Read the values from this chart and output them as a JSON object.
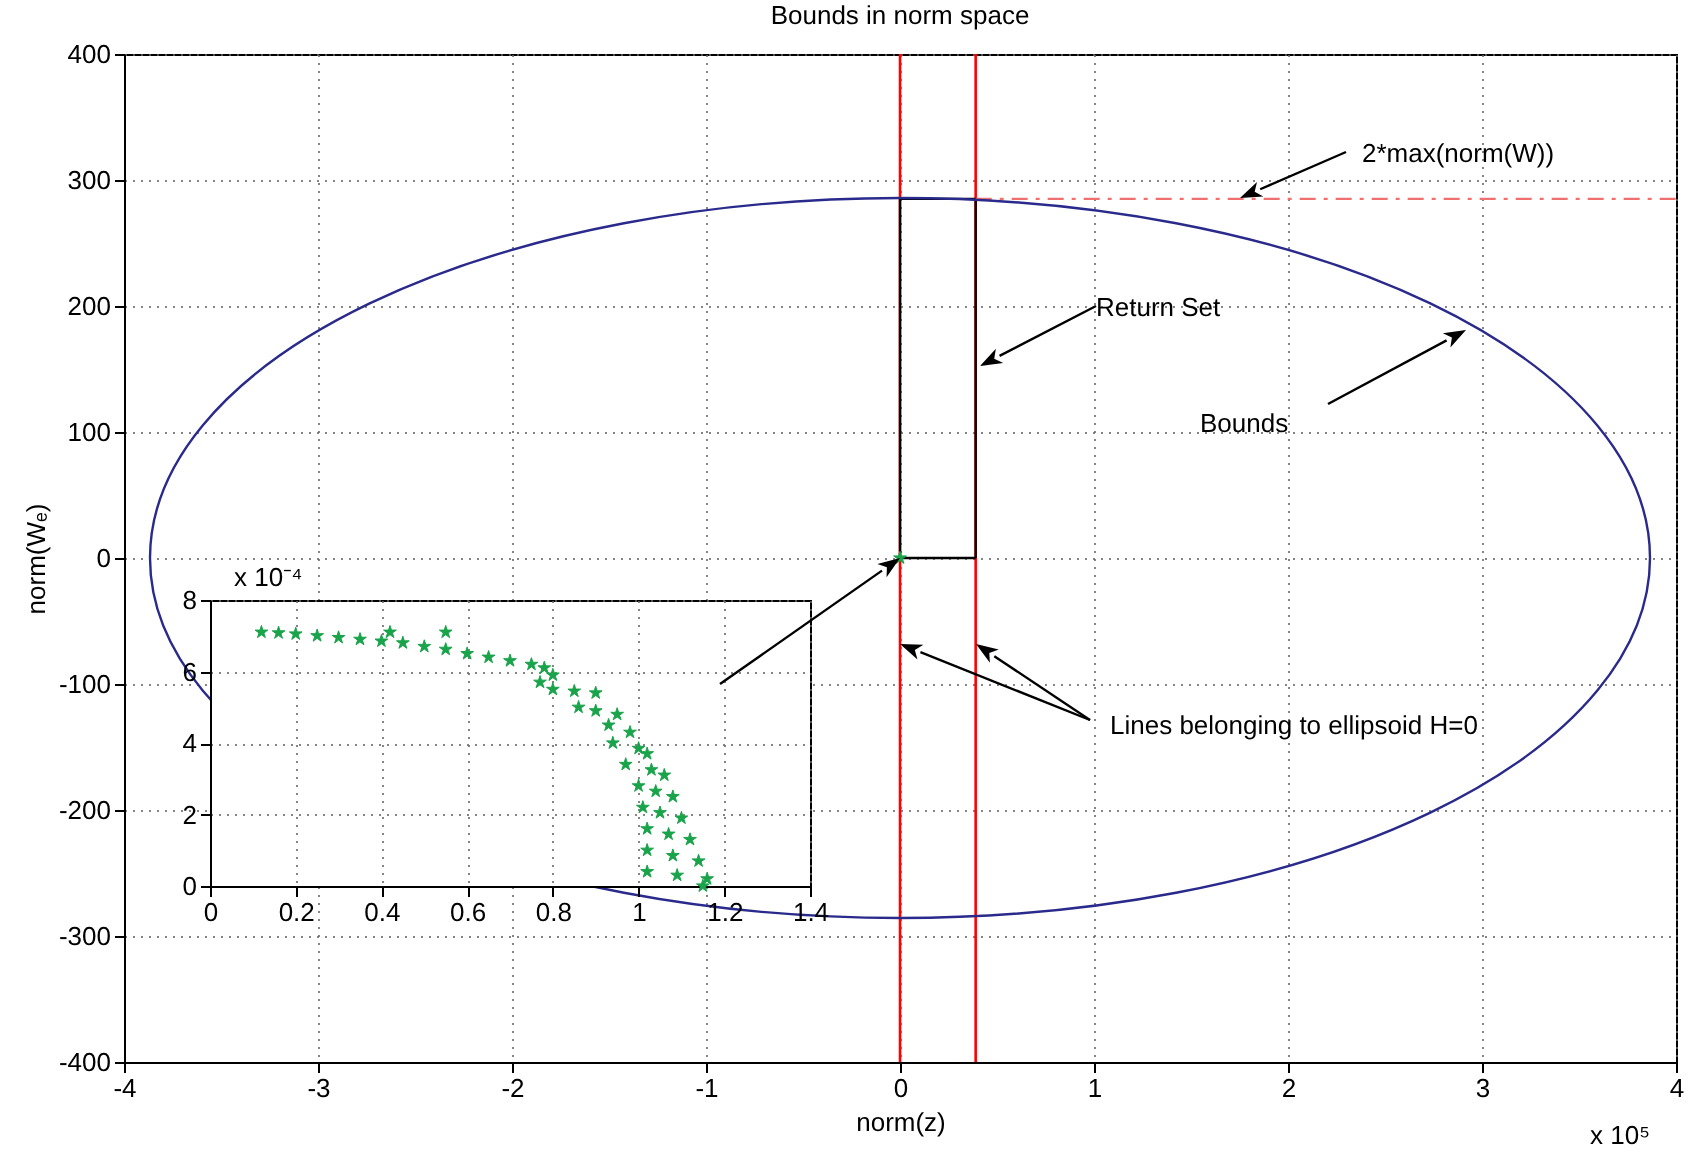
{
  "chart_data": [
    {
      "type": "line",
      "title": "Bounds in norm space",
      "xlabel": "norm(z)",
      "ylabel": "norm(Wₑ)",
      "xlim": [
        -4,
        4
      ],
      "xticks": [
        -4,
        -3,
        -2,
        -1,
        0,
        1,
        2,
        3,
        4
      ],
      "ylim": [
        -400,
        400
      ],
      "yticks": [
        -400,
        -300,
        -200,
        -100,
        0,
        100,
        200,
        300,
        400
      ],
      "grid": true,
      "annotations": [
        "x 10⁵",
        "2*max(norm(W))",
        "Return Set",
        "Bounds",
        "Lines belonging to ellipsoid H=0"
      ],
      "ref_lines": [
        {
          "axis": "x",
          "value": 0,
          "color": "#ff0000"
        },
        {
          "axis": "x",
          "value": 0.39,
          "color": "#ff0000"
        }
      ],
      "series": [
        {
          "color": "#000000",
          "x": [
            0,
            0,
            0.39,
            0.39
          ],
          "values": [
            0,
            285,
            285,
            0
          ]
        },
        {
          "color": "#000000",
          "x": [
            0,
            0.39
          ],
          "values": [
            0,
            0
          ]
        },
        {
          "color": "#f07070",
          "line_style": "dashed",
          "x": [
            0.39,
            4
          ],
          "values": [
            285,
            285
          ]
        },
        {
          "type": "scatter",
          "marker": "star",
          "color": "#19a34a",
          "x": [
            0
          ],
          "values": [
            0
          ]
        }
      ]
    },
    {
      "type": "scatter",
      "marker": "star",
      "annotations": [
        "x 10⁻⁴"
      ],
      "xlim": [
        0,
        1.4
      ],
      "xticks": [
        0,
        0.2,
        0.4,
        0.6,
        0.8,
        1,
        1.2,
        1.4
      ],
      "ylim": [
        0,
        8
      ],
      "yticks": [
        0,
        2,
        4,
        6,
        8
      ],
      "grid": true,
      "series": [
        {
          "color": "#19a34a",
          "x": [
            0.12,
            0.16,
            0.2,
            0.25,
            0.3,
            0.35,
            0.4,
            0.42,
            0.45,
            0.5,
            0.55,
            0.55,
            0.6,
            0.65,
            0.7,
            0.75,
            0.78,
            0.8,
            0.77,
            0.8,
            0.85,
            0.9,
            0.86,
            0.9,
            0.95,
            0.93,
            0.98,
            0.94,
            1.0,
            1.02,
            0.97,
            1.03,
            1.06,
            1.0,
            1.04,
            1.08,
            1.01,
            1.05,
            1.1,
            1.02,
            1.07,
            1.12,
            1.02,
            1.08,
            1.14,
            1.02,
            1.09,
            1.16,
            1.15
          ],
          "values": [
            7.1,
            7.08,
            7.05,
            7.0,
            6.95,
            6.9,
            6.85,
            7.1,
            6.8,
            6.7,
            6.62,
            7.1,
            6.5,
            6.4,
            6.3,
            6.2,
            6.1,
            5.9,
            5.7,
            5.5,
            5.45,
            5.4,
            5.0,
            4.9,
            4.8,
            4.5,
            4.3,
            4.0,
            3.85,
            3.7,
            3.4,
            3.25,
            3.1,
            2.8,
            2.65,
            2.5,
            2.2,
            2.05,
            1.9,
            1.6,
            1.45,
            1.3,
            1.0,
            0.85,
            0.7,
            0.4,
            0.3,
            0.2,
            0.0
          ]
        }
      ]
    }
  ]
}
